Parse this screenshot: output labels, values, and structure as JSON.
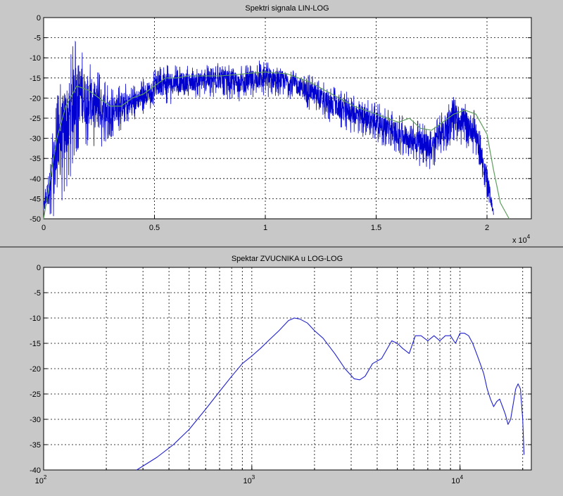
{
  "chart_data": [
    {
      "type": "line",
      "title": "Spektri signala LIN-LOG",
      "xlabel": "",
      "ylabel": "",
      "x_multiplier_label": "x 10",
      "x_multiplier_exponent": "4",
      "xlim": [
        0,
        22000
      ],
      "ylim": [
        -50,
        0
      ],
      "x_ticks": [
        0,
        5000,
        10000,
        15000,
        20000
      ],
      "x_tick_labels": [
        "0",
        "0.5",
        "1",
        "1.5",
        "2"
      ],
      "y_ticks": [
        0,
        -5,
        -10,
        -15,
        -20,
        -25,
        -30,
        -35,
        -40,
        -45,
        -50
      ],
      "y_tick_labels": [
        "0",
        "-5",
        "-10",
        "-15",
        "-20",
        "-25",
        "-30",
        "-35",
        "-40",
        "-45",
        "-50"
      ],
      "grid": true,
      "series": [
        {
          "color": "#0000d0",
          "kind": "raw spectrum (noisy)",
          "x": [
            0,
            300,
            600,
            900,
            1200,
            1500,
            2000,
            2500,
            3000,
            3500,
            4000,
            4500,
            5000,
            5500,
            6000,
            7000,
            8000,
            9000,
            10000,
            11000,
            12000,
            13000,
            14000,
            15000,
            16000,
            17000,
            17500,
            18000,
            18500,
            19000,
            19500,
            20000,
            20300
          ],
          "upper": [
            -45,
            -33,
            -20,
            -12,
            -8,
            -5,
            -10,
            -13,
            -17,
            -16,
            -17,
            -15,
            -13,
            -11,
            -12,
            -12,
            -11,
            -12,
            -10,
            -12,
            -14,
            -17,
            -19,
            -21,
            -24,
            -25,
            -28,
            -22,
            -19,
            -20,
            -23,
            -35,
            -48
          ],
          "lower": [
            -50,
            -50,
            -50,
            -45,
            -40,
            -33,
            -32,
            -33,
            -30,
            -28,
            -26,
            -24,
            -22,
            -22,
            -21,
            -20,
            -20,
            -21,
            -20,
            -20,
            -23,
            -27,
            -29,
            -31,
            -34,
            -37,
            -38,
            -34,
            -31,
            -32,
            -35,
            -45,
            -50
          ]
        },
        {
          "color": "#5f9e5f",
          "kind": "smoothed spectrum",
          "x": [
            0,
            300,
            600,
            1000,
            1500,
            2000,
            2500,
            3000,
            3500,
            4000,
            4500,
            5000,
            5500,
            6000,
            6500,
            7000,
            8000,
            9000,
            10000,
            11000,
            12000,
            13000,
            14000,
            15000,
            16000,
            16500,
            17000,
            17500,
            18000,
            18500,
            19000,
            19500,
            20000,
            20300,
            20600,
            21000
          ],
          "y": [
            -50,
            -40,
            -30,
            -22,
            -17,
            -18,
            -20,
            -22,
            -22,
            -20,
            -19,
            -17,
            -15,
            -15,
            -14.5,
            -14.5,
            -14.5,
            -14,
            -13.5,
            -14,
            -16,
            -19,
            -22,
            -24,
            -26,
            -25,
            -27.5,
            -28,
            -26,
            -24,
            -23,
            -24,
            -29,
            -38,
            -46,
            -50
          ]
        }
      ]
    },
    {
      "type": "line",
      "title": "Spektar ZVUCNIKA u LOG-LOG",
      "xlabel": "",
      "ylabel": "",
      "x_scale": "log",
      "xlim": [
        100,
        22000
      ],
      "ylim": [
        -40,
        0
      ],
      "x_tick_labels": [
        {
          "base": "10",
          "exp": "2",
          "value": 100
        },
        {
          "base": "10",
          "exp": "3",
          "value": 1000
        },
        {
          "base": "10",
          "exp": "4",
          "value": 10000
        }
      ],
      "y_ticks": [
        0,
        -5,
        -10,
        -15,
        -20,
        -25,
        -30,
        -35,
        -40
      ],
      "y_tick_labels": [
        "0",
        "-5",
        "-10",
        "-15",
        "-20",
        "-25",
        "-30",
        "-35",
        "-40"
      ],
      "grid": true,
      "series": [
        {
          "color": "#2020d0",
          "x": [
            280,
            350,
            420,
            500,
            600,
            700,
            800,
            900,
            1000,
            1100,
            1200,
            1350,
            1500,
            1600,
            1700,
            1850,
            2000,
            2200,
            2500,
            2800,
            3100,
            3300,
            3500,
            3800,
            4200,
            4700,
            5000,
            5300,
            5700,
            6100,
            6500,
            7000,
            7500,
            8000,
            8500,
            9000,
            9500,
            10000,
            10500,
            11000,
            11500,
            12000,
            12500,
            13000,
            13500,
            14000,
            14500,
            15000,
            15500,
            16000,
            16500,
            17000,
            17500,
            18000,
            18500,
            19000,
            19500,
            20000,
            20300
          ],
          "y": [
            -40,
            -37.5,
            -35,
            -32,
            -28,
            -24.5,
            -21.5,
            -19,
            -17.5,
            -16,
            -14.5,
            -12.5,
            -10.5,
            -10,
            -10.2,
            -11,
            -12.5,
            -14,
            -17,
            -20,
            -22,
            -22.2,
            -21.5,
            -19,
            -18,
            -14.5,
            -15,
            -16,
            -17,
            -13.5,
            -13.5,
            -14.5,
            -13.5,
            -14.5,
            -13.5,
            -13.5,
            -15,
            -13,
            -13,
            -13.5,
            -15,
            -17,
            -19,
            -21,
            -24,
            -26,
            -27.5,
            -26.5,
            -26,
            -27.5,
            -29,
            -31,
            -30,
            -27,
            -24,
            -23,
            -24,
            -30,
            -37
          ]
        }
      ]
    }
  ]
}
